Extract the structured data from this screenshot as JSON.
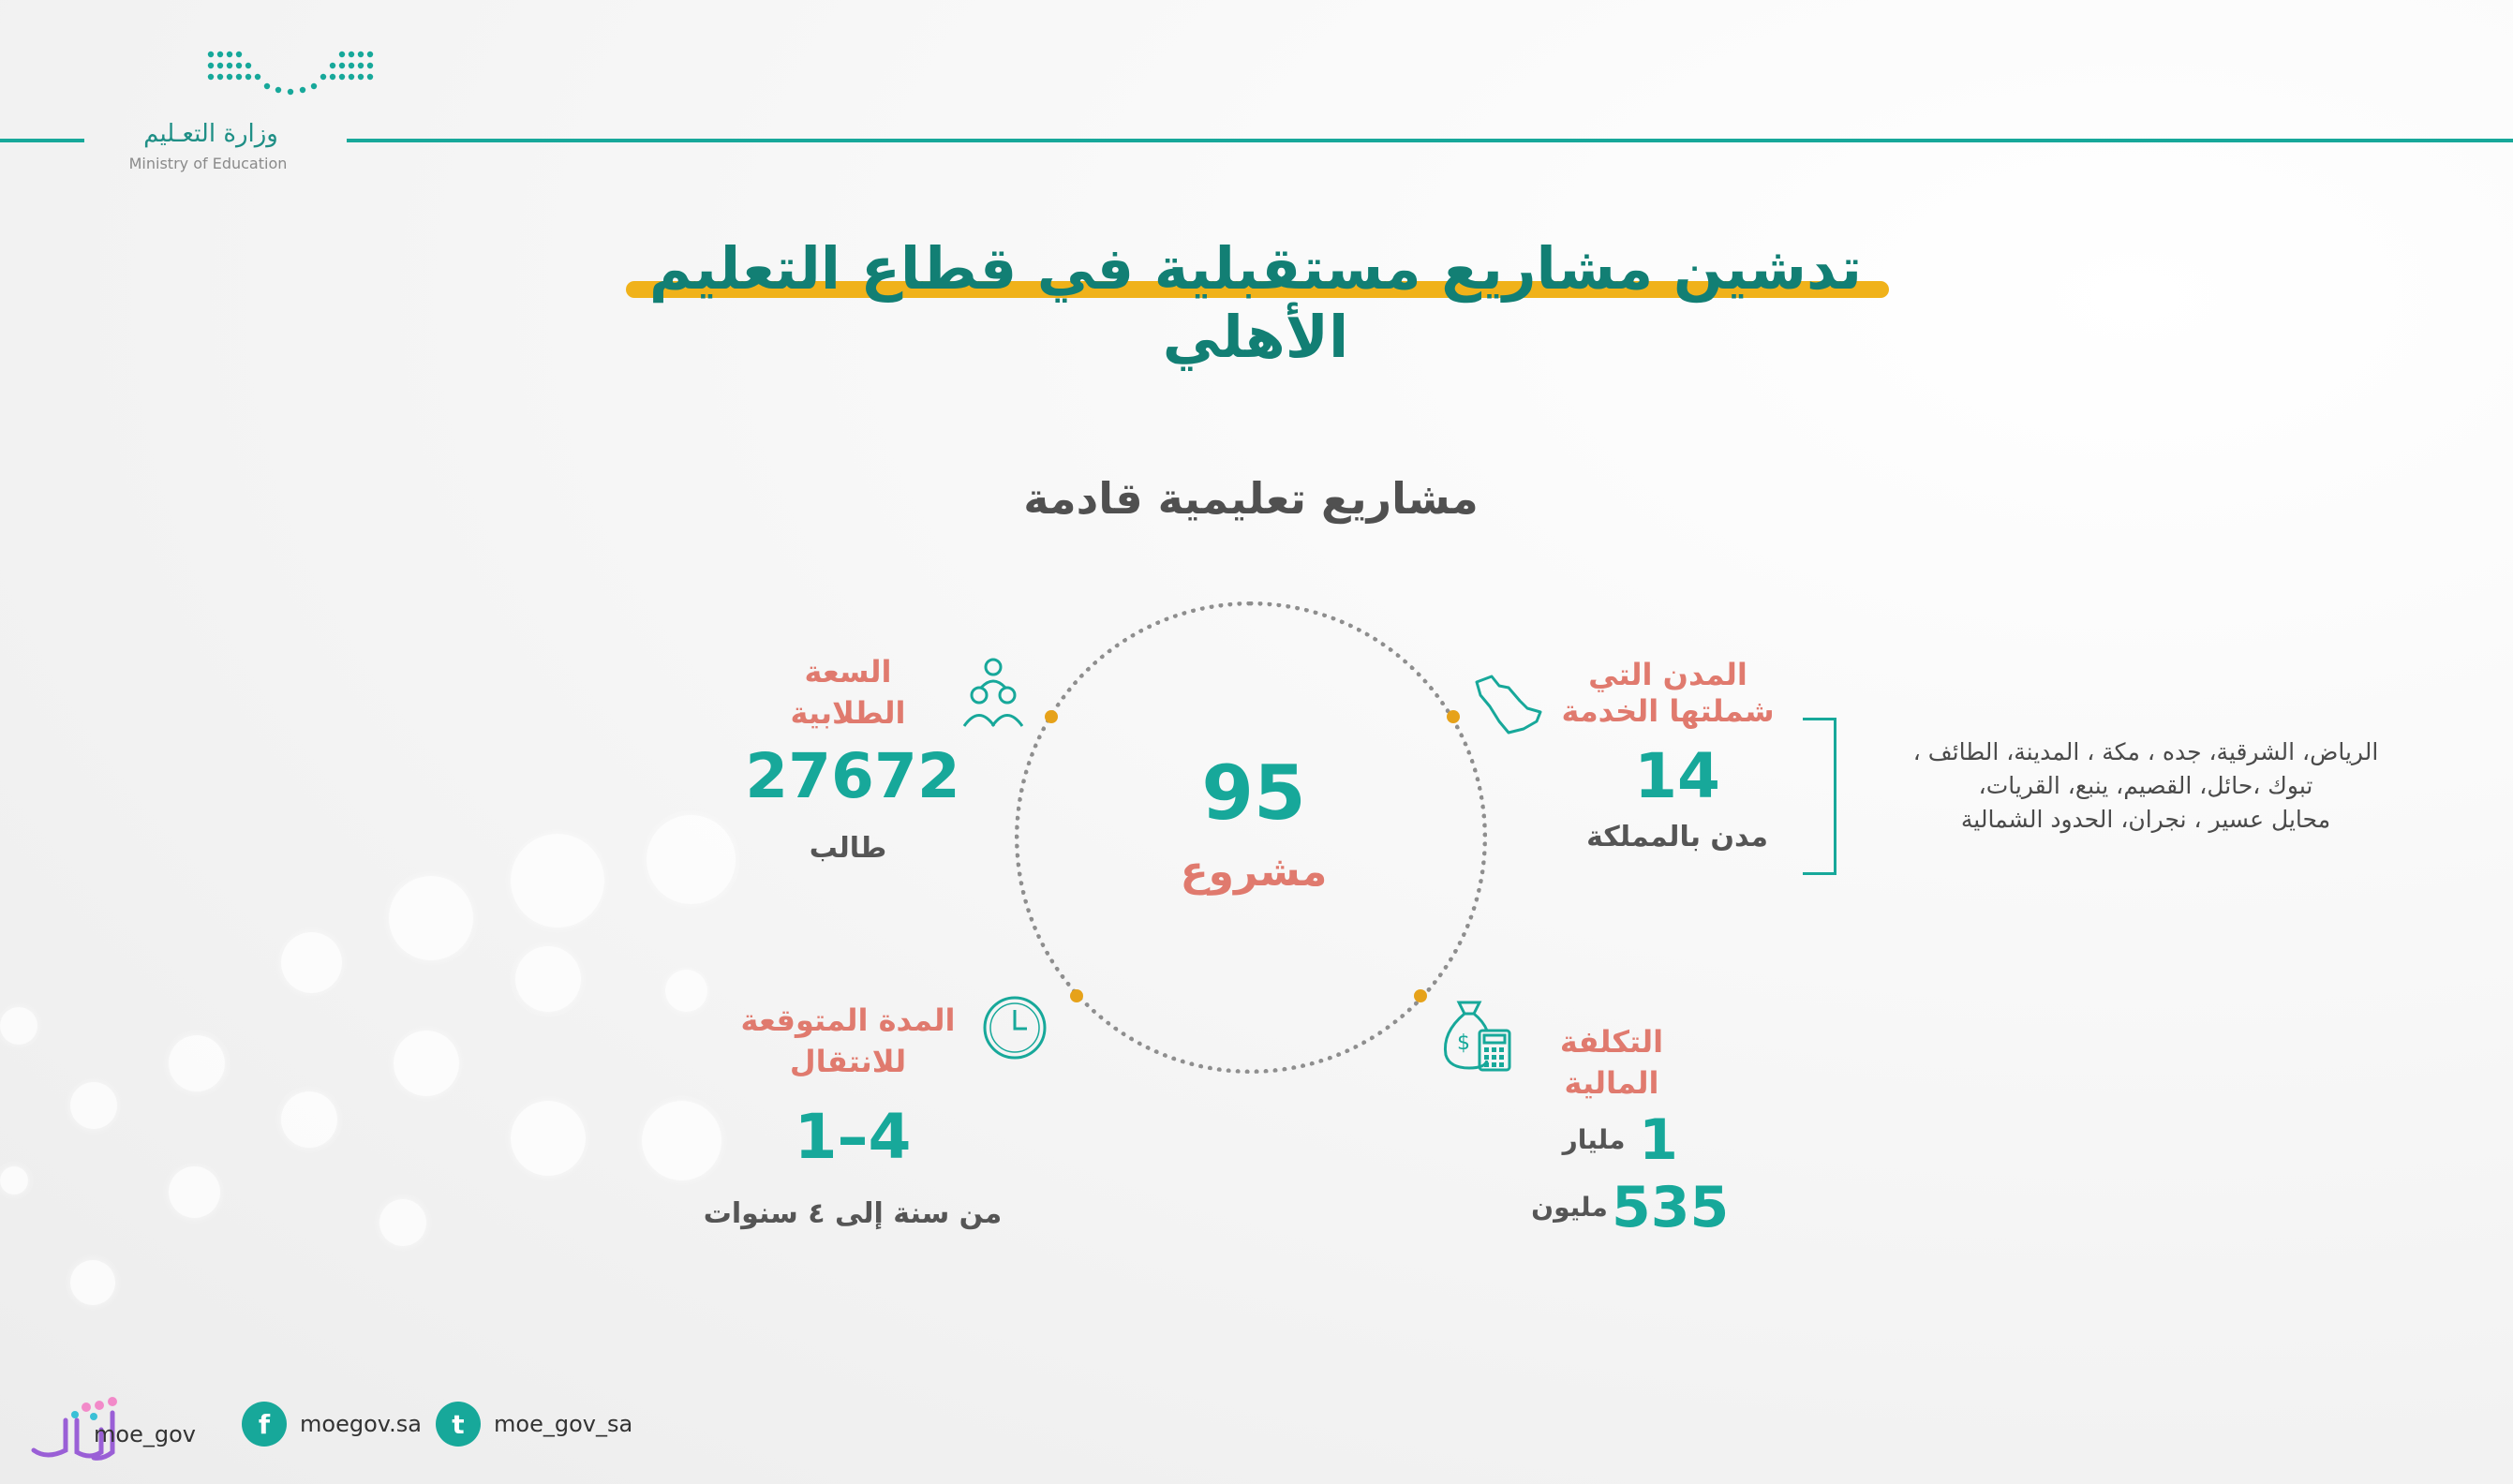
{
  "header": {
    "logo_ar": "وزارة التعـليم",
    "logo_en": "Ministry of Education"
  },
  "title": "تدشين مشاريع مستقبلية في قطاع التعليم الأهلي",
  "subtitle": "مشاريع تعليمية قادمة",
  "center": {
    "value": "95",
    "label": "مشروع"
  },
  "stats": {
    "capacity": {
      "label_line1": "السعة",
      "label_line2": "الطلابية",
      "value": "27672",
      "unit": "طالب"
    },
    "cities": {
      "label_line1": "المدن التي",
      "label_line2": "شملتها الخدمة",
      "value": "14",
      "unit": "مدن بالمملكة"
    },
    "duration": {
      "label_line1": "المدة المتوقعة",
      "label_line2": "للانتقال",
      "value": "1–4",
      "unit": "من سنة إلى ٤ سنوات"
    },
    "cost": {
      "label_line1": "التكلفة",
      "label_line2": "المالية",
      "value_billion": "1",
      "unit_billion": "مليار",
      "value_million": "535",
      "unit_million": "مليون"
    }
  },
  "cities_list": {
    "line1": "الرياض، الشرقية، جده ، مكة ، المدينة، الطائف ،",
    "line2": "تبوك ،حائل، القصيم، ينبع، القريات،",
    "line3": "محايل عسير ، نجران، الحدود الشمالية"
  },
  "footer": {
    "twitter": "moe_gov_sa",
    "facebook": "moegov.sa",
    "instagram": "moe_gov",
    "twitter_glyph": "t",
    "facebook_glyph": "f"
  },
  "colors": {
    "teal": "#17a89a",
    "coral": "#e07a6e",
    "gold": "#f0b21a"
  },
  "icons": [
    "students-icon",
    "saudi-map-icon",
    "clock-icon",
    "money-bag-icon",
    "facebook-icon",
    "twitter-icon",
    "instagram-icon"
  ]
}
